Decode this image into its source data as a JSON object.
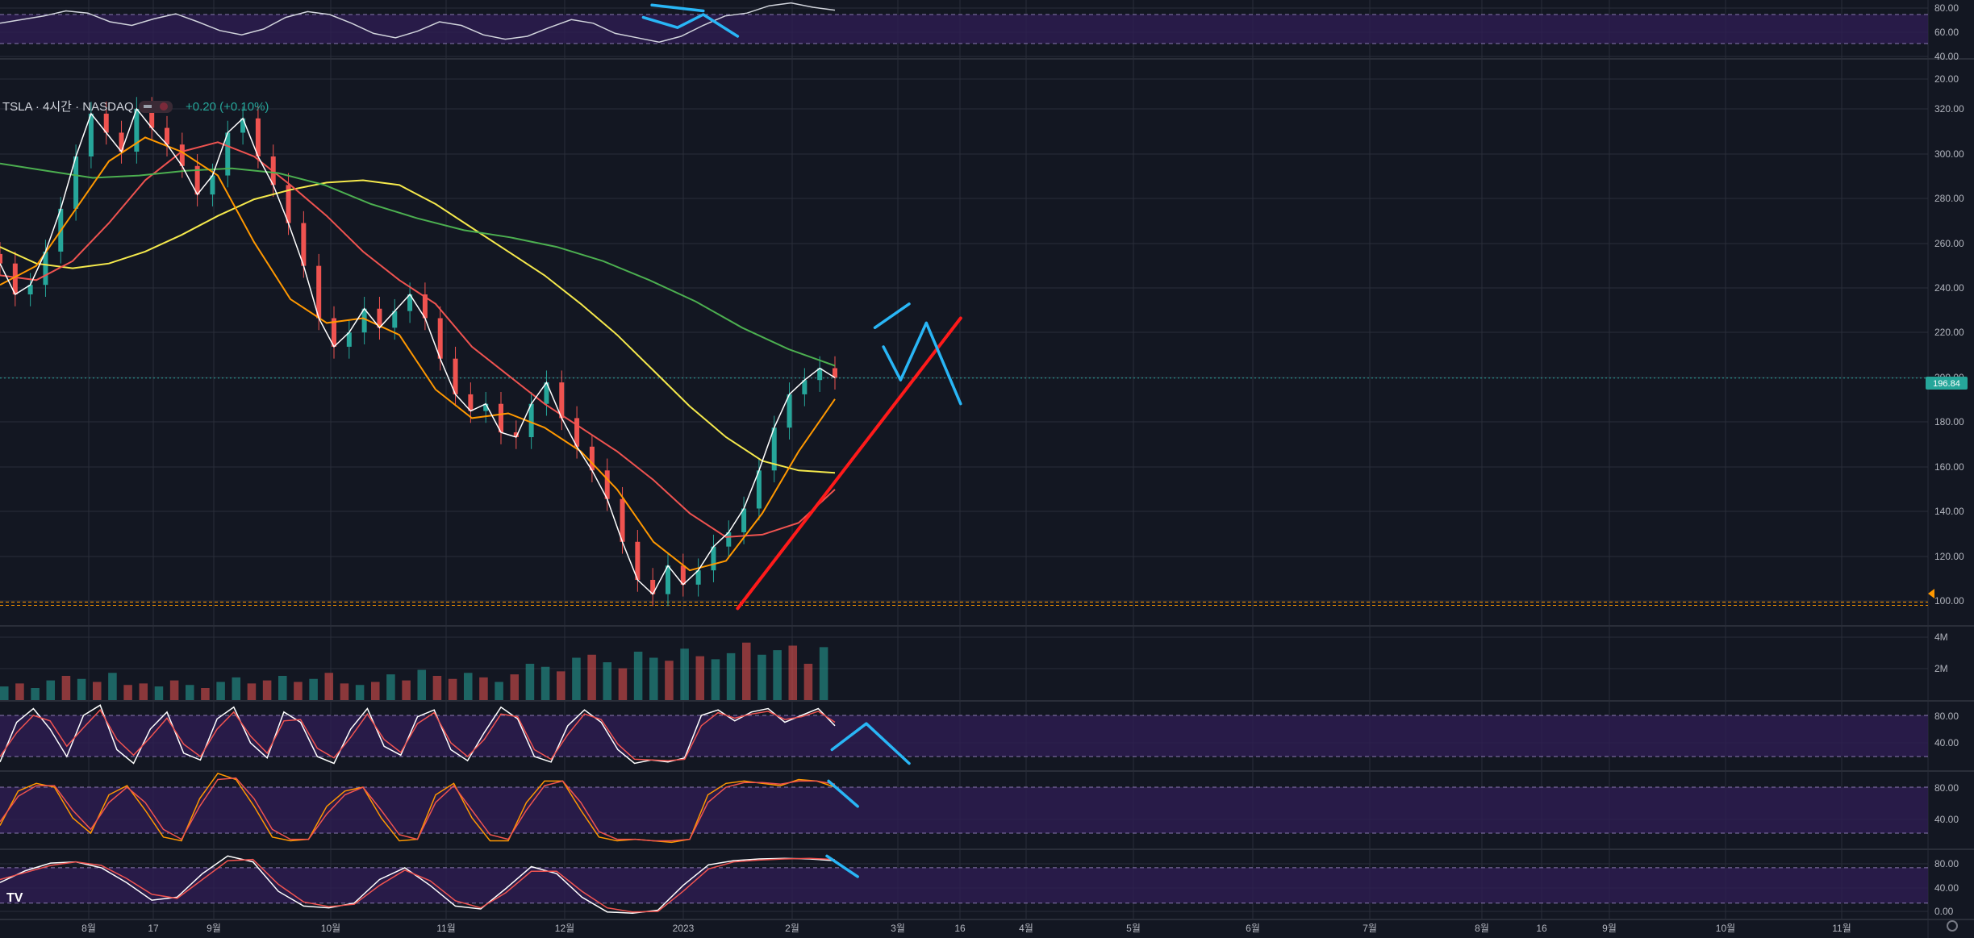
{
  "header": {
    "symbol_line": "TSLA · 4시간 · NASDAQ",
    "change": "+0.20 (+0.10%)"
  },
  "colors": {
    "background": "#131722",
    "grid": "#2a2e39",
    "up": "#26a69a",
    "down": "#ef5350",
    "band": "#2e1d52",
    "price_badge": "#26a69a"
  },
  "chart_data": [
    {
      "type": "line",
      "panel": "oscillator-top",
      "y_ticks": [
        "80.00",
        "60.00",
        "40.00",
        "20.00"
      ],
      "ylim": [
        10,
        90
      ],
      "band": [
        30,
        70
      ],
      "series": [
        {
          "color": "#d1d4dc",
          "values": [
            58,
            63,
            68,
            75,
            72,
            60,
            55,
            64,
            71,
            60,
            48,
            42,
            50,
            66,
            74,
            70,
            58,
            44,
            38,
            47,
            60,
            55,
            42,
            36,
            40,
            52,
            63,
            58,
            44,
            38,
            32,
            40,
            55,
            68,
            72,
            82,
            86,
            80,
            76
          ]
        }
      ],
      "annotations": [
        {
          "color": "#29b6f6",
          "points": [
            [
              38,
              83
            ],
            [
              41,
              75
            ]
          ]
        },
        {
          "color": "#29b6f6",
          "points": [
            [
              37.5,
              66
            ],
            [
              39.5,
              52
            ],
            [
              41,
              70
            ],
            [
              43,
              40
            ]
          ]
        }
      ]
    },
    {
      "type": "candlestick",
      "panel": "price",
      "y_ticks": [
        "320.00",
        "300.00",
        "280.00",
        "260.00",
        "240.00",
        "220.00",
        "200.00",
        "180.00",
        "160.00",
        "140.00",
        "120.00",
        "100.00"
      ],
      "ylim": [
        93,
        330
      ],
      "x_ticks": [
        "8월",
        "17",
        "9월",
        "10월",
        "11월",
        "12월",
        "2023",
        "2월",
        "3월",
        "16",
        "4월",
        "5월",
        "6월",
        "7월",
        "8월",
        "16",
        "9월",
        "10월",
        "11월"
      ],
      "last_price": "196.84",
      "support_level": 102,
      "closes": [
        245,
        232,
        236,
        250,
        268,
        290,
        308,
        300,
        292,
        310,
        302,
        295,
        286,
        274,
        282,
        300,
        306,
        290,
        278,
        262,
        244,
        222,
        210,
        216,
        226,
        218,
        225,
        232,
        222,
        205,
        190,
        183,
        186,
        174,
        172,
        186,
        195,
        180,
        168,
        158,
        146,
        128,
        112,
        106,
        118,
        110,
        116,
        126,
        132,
        142,
        158,
        176,
        190,
        196,
        201,
        197
      ],
      "ma_lines": [
        {
          "color": "#f5e94c",
          "values": [
            252,
            245,
            243,
            245,
            250,
            257,
            265,
            272,
            276,
            279,
            280,
            278,
            270,
            260,
            250,
            240,
            228,
            215,
            200,
            185,
            172,
            162,
            158,
            157
          ]
        },
        {
          "color": "#ef5350",
          "values": [
            240,
            238,
            246,
            262,
            280,
            292,
            296,
            290,
            278,
            265,
            250,
            238,
            228,
            210,
            198,
            186,
            176,
            166,
            154,
            140,
            130,
            131,
            136,
            150
          ]
        },
        {
          "color": "#4caf50",
          "values": [
            287,
            284,
            281,
            282,
            284,
            285,
            283,
            278,
            270,
            264,
            259,
            256,
            252,
            246,
            238,
            229,
            218,
            209,
            202
          ]
        },
        {
          "color": "#ff9800",
          "values": [
            236,
            244,
            266,
            288,
            298,
            292,
            282,
            254,
            230,
            220,
            222,
            215,
            192,
            180,
            182,
            176,
            166,
            150,
            128,
            116,
            120,
            140,
            166,
            188
          ]
        }
      ],
      "annotations": [
        {
          "color": "#ff1a1a",
          "points": [
            [
              43,
              100
            ],
            [
              56,
              222
            ]
          ]
        },
        {
          "color": "#29b6f6",
          "points": [
            [
              51,
              218
            ],
            [
              53,
              228
            ]
          ]
        },
        {
          "color": "#29b6f6",
          "points": [
            [
              51.5,
              210
            ],
            [
              52.5,
              196
            ],
            [
              54,
              220
            ],
            [
              56,
              186
            ]
          ]
        }
      ]
    },
    {
      "type": "bar",
      "panel": "volume",
      "y_ticks": [
        "4M",
        "2M"
      ],
      "ylim": [
        0,
        4.8
      ],
      "values": [
        0.9,
        1.1,
        0.8,
        1.3,
        1.6,
        1.4,
        1.2,
        1.8,
        1.0,
        1.1,
        0.9,
        1.3,
        1.0,
        0.8,
        1.2,
        1.5,
        1.1,
        1.3,
        1.6,
        1.2,
        1.4,
        1.8,
        1.1,
        1.0,
        1.2,
        1.7,
        1.3,
        2.0,
        1.6,
        1.4,
        1.8,
        1.5,
        1.2,
        1.7,
        2.4,
        2.2,
        1.9,
        2.8,
        3.0,
        2.5,
        2.1,
        3.2,
        2.8,
        2.6,
        3.4,
        2.9,
        2.7,
        3.1,
        3.8,
        3.0,
        3.3,
        3.6,
        2.4,
        3.5
      ],
      "up_flags": [
        1,
        0,
        1,
        1,
        0,
        1,
        0,
        1,
        0,
        0,
        1,
        0,
        1,
        0,
        1,
        1,
        0,
        0,
        1,
        0,
        1,
        0,
        0,
        1,
        0,
        1,
        0,
        1,
        0,
        0,
        1,
        0,
        1,
        0,
        1,
        1,
        0,
        1,
        0,
        1,
        0,
        1,
        1,
        0,
        1,
        0,
        1,
        1,
        0,
        1,
        1,
        0,
        0,
        1
      ]
    },
    {
      "type": "line",
      "panel": "oscillator-1",
      "y_ticks": [
        "80.00",
        "40.00"
      ],
      "ylim": [
        0,
        100
      ],
      "band": [
        20,
        80
      ],
      "series": [
        {
          "color": "#ffffff",
          "values": [
            12,
            70,
            90,
            60,
            20,
            80,
            95,
            30,
            10,
            60,
            85,
            25,
            15,
            75,
            92,
            40,
            18,
            85,
            70,
            20,
            10,
            60,
            90,
            35,
            22,
            78,
            88,
            30,
            14,
            55,
            92,
            75,
            20,
            12,
            65,
            88,
            70,
            30,
            10,
            15,
            12,
            18,
            80,
            88,
            72,
            85,
            90,
            70,
            80,
            90,
            65
          ]
        },
        {
          "color": "#ef5350",
          "values": [
            20,
            55,
            80,
            72,
            35,
            62,
            88,
            45,
            22,
            48,
            76,
            38,
            20,
            60,
            85,
            50,
            25,
            72,
            74,
            32,
            18,
            48,
            82,
            45,
            26,
            68,
            84,
            40,
            20,
            45,
            82,
            78,
            30,
            16,
            52,
            82,
            74,
            38,
            16,
            15,
            14,
            16,
            65,
            84,
            76,
            82,
            86,
            74,
            78,
            86,
            70
          ]
        }
      ],
      "annotations": [
        {
          "color": "#29b6f6",
          "points": [
            [
              48.5,
              30
            ],
            [
              50.5,
              68
            ],
            [
              53,
              10
            ]
          ]
        }
      ]
    },
    {
      "type": "line",
      "panel": "oscillator-2",
      "y_ticks": [
        "80.00",
        "40.00"
      ],
      "ylim": [
        0,
        100
      ],
      "band": [
        20,
        80
      ],
      "series": [
        {
          "color": "#ff9800",
          "values": [
            30,
            75,
            85,
            80,
            40,
            20,
            70,
            82,
            50,
            15,
            10,
            65,
            98,
            90,
            55,
            15,
            10,
            12,
            55,
            75,
            80,
            40,
            10,
            12,
            70,
            85,
            40,
            10,
            10,
            60,
            88,
            88,
            50,
            15,
            10,
            12,
            10,
            8,
            12,
            70,
            85,
            88,
            85,
            82,
            90,
            88,
            80
          ]
        },
        {
          "color": "#ef5350",
          "values": [
            35,
            68,
            82,
            82,
            50,
            25,
            60,
            80,
            60,
            25,
            12,
            55,
            90,
            92,
            65,
            25,
            12,
            12,
            45,
            70,
            80,
            50,
            18,
            12,
            60,
            82,
            50,
            18,
            12,
            50,
            82,
            88,
            60,
            22,
            12,
            12,
            10,
            10,
            12,
            60,
            80,
            86,
            86,
            84,
            88,
            88,
            84
          ]
        }
      ],
      "annotations": [
        {
          "color": "#29b6f6",
          "points": [
            [
              48.3,
              88
            ],
            [
              50,
              55
            ]
          ]
        }
      ]
    },
    {
      "type": "line",
      "panel": "oscillator-3",
      "y_ticks": [
        "80.00",
        "40.00",
        "0.00"
      ],
      "ylim": [
        -5,
        110
      ],
      "band": [
        20,
        80
      ],
      "series": [
        {
          "color": "#ffffff",
          "values": [
            55,
            75,
            88,
            90,
            80,
            55,
            25,
            30,
            70,
            100,
            90,
            40,
            15,
            12,
            20,
            60,
            80,
            50,
            15,
            10,
            45,
            82,
            70,
            30,
            5,
            3,
            8,
            50,
            85,
            92,
            95,
            96,
            95,
            92
          ]
        },
        {
          "color": "#ef5350",
          "values": [
            60,
            72,
            84,
            90,
            84,
            62,
            35,
            28,
            60,
            92,
            94,
            52,
            22,
            14,
            18,
            50,
            76,
            58,
            24,
            12,
            38,
            74,
            74,
            40,
            12,
            5,
            6,
            40,
            78,
            90,
            93,
            95,
            96,
            94
          ]
        }
      ],
      "annotations": [
        {
          "color": "#29b6f6",
          "points": [
            [
              48.2,
              100
            ],
            [
              50,
              65
            ]
          ]
        }
      ]
    }
  ]
}
